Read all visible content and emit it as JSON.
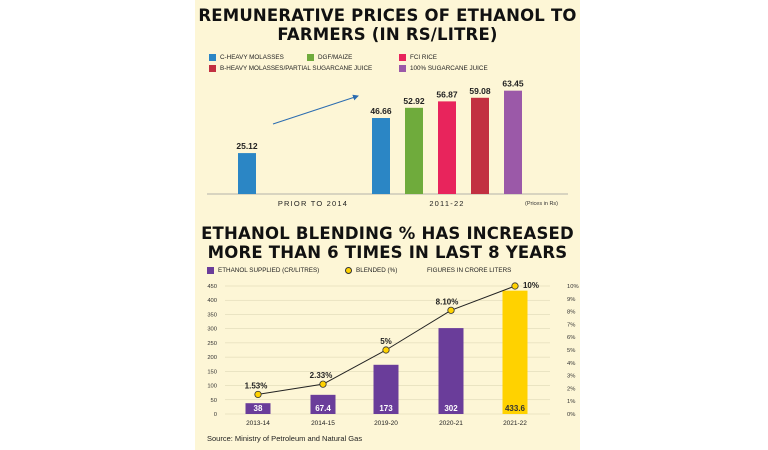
{
  "chart_data": [
    {
      "type": "bar",
      "title": "REMUNERATIVE PRICES OF ETHANOL TO FARMERS (IN RS/LITRE)",
      "legend": [
        {
          "name": "C-HEAVY MOLASSES",
          "color": "#2b86c5"
        },
        {
          "name": "DGF/MAIZE",
          "color": "#6fab3c"
        },
        {
          "name": "FCI RICE",
          "color": "#e8245c"
        },
        {
          "name": "B-HEAVY MOLASSES/PARTIAL SUGARCANE JUICE",
          "color": "#c23041"
        },
        {
          "name": "100% SUGARCANE JUICE",
          "color": "#9b59a8"
        }
      ],
      "groups": [
        {
          "label": "PRIOR TO 2014",
          "bars": [
            {
              "value": 25.12,
              "color": "#2b86c5",
              "label": "25.12"
            }
          ]
        },
        {
          "label": "2011-22",
          "bars": [
            {
              "value": 46.66,
              "color": "#2b86c5",
              "label": "46.66"
            },
            {
              "value": 52.92,
              "color": "#6fab3c",
              "label": "52.92"
            },
            {
              "value": 56.87,
              "color": "#e8245c",
              "label": "56.87"
            },
            {
              "value": 59.08,
              "color": "#c23041",
              "label": "59.08"
            },
            {
              "value": 63.45,
              "color": "#9b59a8",
              "label": "63.45"
            }
          ]
        }
      ],
      "note": "(Prices in Rs)",
      "ylim": [
        0,
        70
      ]
    },
    {
      "type": "bar+line",
      "title": "ETHANOL BLENDING % HAS INCREASED MORE THAN 6 TIMES IN LAST 8 YEARS",
      "legend": {
        "bar": "ETHANOL SUPPLIED (CR/LITRES)",
        "line": "BLENDED (%)",
        "note": "FIGURES IN CRORE LITERS"
      },
      "categories": [
        "2013-14",
        "2014-15",
        "2019-20",
        "2020-21",
        "2021-22"
      ],
      "bar_values": [
        38,
        67.4,
        173,
        302,
        433.6
      ],
      "bar_labels": [
        "38",
        "67.4",
        "173",
        "302",
        "433.6"
      ],
      "bar_colors": [
        "#6a3d9a",
        "#6a3d9a",
        "#6a3d9a",
        "#6a3d9a",
        "#ffd200"
      ],
      "line_values": [
        1.53,
        2.33,
        5,
        8.1,
        10
      ],
      "line_labels": [
        "1.53%",
        "2.33%",
        "5%",
        "8.10%",
        "10%"
      ],
      "y_left": {
        "ticks": [
          "0",
          "50",
          "100",
          "150",
          "200",
          "250",
          "300",
          "350",
          "400",
          "450"
        ],
        "lim": [
          0,
          450
        ]
      },
      "y_right": {
        "ticks": [
          "0%",
          "1%",
          "2%",
          "3%",
          "4%",
          "5%",
          "6%",
          "7%",
          "8%",
          "9%",
          "10%"
        ],
        "lim": [
          0,
          10
        ]
      },
      "grid": true,
      "colors": {
        "bar": "#6a3d9a",
        "highlight": "#ffd200",
        "line": "#222222",
        "marker": "#ffd200"
      }
    }
  ],
  "source": "Source: Ministry of Petroleum and Natural Gas"
}
